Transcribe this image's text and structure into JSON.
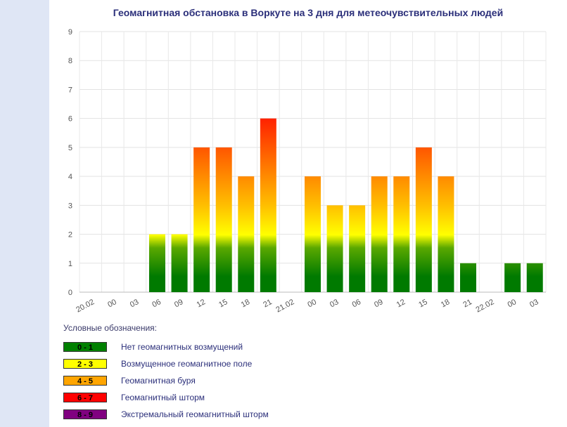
{
  "chart_data": {
    "type": "bar",
    "title": "Геомагнитная обстановка в Воркуте на 3 дня для метеочувствительных людей",
    "ylim": [
      0,
      9
    ],
    "y_ticks": [
      "0",
      "1",
      "2",
      "3",
      "4",
      "5",
      "6",
      "7",
      "8",
      "9"
    ],
    "grid": true,
    "categories": [
      "20.02",
      "00",
      "03",
      "06",
      "09",
      "12",
      "15",
      "18",
      "21",
      "21.02",
      "00",
      "03",
      "06",
      "09",
      "12",
      "15",
      "18",
      "21",
      "22.02",
      "00",
      "03"
    ],
    "values": [
      0,
      0,
      0,
      2,
      2,
      5,
      5,
      4,
      6,
      0,
      4,
      3,
      3,
      4,
      4,
      5,
      4,
      1,
      0,
      1,
      1
    ]
  },
  "legend": {
    "title": "Условные обозначения:",
    "items": [
      {
        "range": "0 - 1",
        "label": "Нет геомагнитных возмущений",
        "color": "#008000",
        "text_color": "#000000"
      },
      {
        "range": "2 - 3",
        "label": "Возмущенное геомагнитное поле",
        "color": "#ffff00",
        "text_color": "#000000"
      },
      {
        "range": "4 - 5",
        "label": "Геомагнитная буря",
        "color": "#ffa500",
        "text_color": "#000000"
      },
      {
        "range": "6 - 7",
        "label": "Геомагнитный шторм",
        "color": "#ff0000",
        "text_color": "#000000"
      },
      {
        "range": "8 - 9",
        "label": "Экстремальный геомагнитный шторм",
        "color": "#800080",
        "text_color": "#000000"
      }
    ]
  }
}
